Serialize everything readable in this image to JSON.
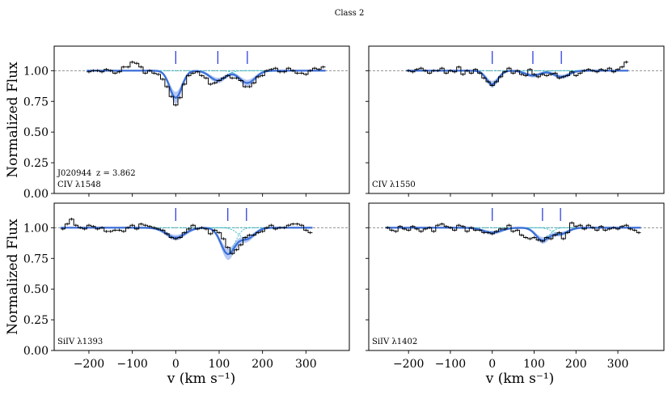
{
  "figure": {
    "suptitle": "Class 2",
    "xlabel": "v (km s⁻¹)",
    "ylabel": "Normalized Flux",
    "target_label": "J020944",
    "redshift_label": "z = 3.862",
    "colors": {
      "data": "#000000",
      "total_fit": "#3a6fd8",
      "fit_band": "#a9bff2",
      "components": "#2bb8c4",
      "markers": "#2030e0",
      "continuum": "#808080"
    }
  },
  "chart_data": [
    {
      "type": "line",
      "panel": "top-left",
      "ion_label": "CIV λ1548",
      "xlim": [
        -280,
        400
      ],
      "ylim": [
        0,
        1.2
      ],
      "xticks": [
        -200,
        -100,
        0,
        100,
        200,
        300
      ],
      "yticks": [
        0.0,
        0.25,
        0.5,
        0.75,
        1.0
      ],
      "yticklabels": [
        "0.00",
        "0.25",
        "0.50",
        "0.75",
        "1.00"
      ],
      "show_xticklabels": false,
      "show_yticklabels": true,
      "continuum": 1.0,
      "component_velocities": [
        0,
        97,
        165
      ],
      "components": [
        {
          "v": 0,
          "depth": 0.22,
          "sigma": 14
        },
        {
          "v": 97,
          "depth": 0.08,
          "sigma": 18
        },
        {
          "v": 165,
          "depth": 0.1,
          "sigma": 18
        }
      ],
      "x": [
        -200,
        -190,
        -180,
        -170,
        -160,
        -150,
        -140,
        -130,
        -120,
        -110,
        -100,
        -90,
        -80,
        -70,
        -60,
        -50,
        -40,
        -30,
        -20,
        -10,
        0,
        10,
        20,
        30,
        40,
        50,
        60,
        70,
        80,
        90,
        100,
        110,
        120,
        130,
        140,
        150,
        160,
        170,
        180,
        190,
        200,
        210,
        220,
        230,
        240,
        250,
        260,
        270,
        280,
        290,
        300,
        310,
        320,
        330,
        340
      ],
      "flux": [
        0.99,
        1.0,
        1.0,
        0.99,
        1.01,
        1.0,
        0.98,
        0.99,
        1.03,
        1.03,
        1.07,
        1.06,
        1.03,
        0.98,
        1.0,
        0.98,
        0.97,
        0.93,
        0.87,
        0.79,
        0.72,
        0.78,
        0.89,
        0.96,
        0.98,
        0.99,
        0.96,
        0.94,
        0.89,
        0.9,
        0.92,
        0.94,
        0.96,
        0.94,
        0.94,
        0.92,
        0.87,
        0.87,
        0.9,
        0.95,
        0.96,
        1.0,
        1.01,
        1.02,
        0.99,
        0.99,
        1.02,
        1.0,
        0.98,
        0.98,
        0.97,
        1.0,
        1.02,
        1.01,
        1.03
      ]
    },
    {
      "type": "line",
      "panel": "top-right",
      "ion_label": "CIV λ1550",
      "xlim": [
        -295,
        410
      ],
      "ylim": [
        0,
        1.2
      ],
      "xticks": [
        -200,
        -100,
        0,
        100,
        200,
        300
      ],
      "yticks": [
        0.0,
        0.25,
        0.5,
        0.75,
        1.0
      ],
      "show_xticklabels": false,
      "show_yticklabels": false,
      "continuum": 1.0,
      "component_velocities": [
        0,
        97,
        165
      ],
      "components": [
        {
          "v": 0,
          "depth": 0.11,
          "sigma": 14
        },
        {
          "v": 97,
          "depth": 0.04,
          "sigma": 18
        },
        {
          "v": 165,
          "depth": 0.05,
          "sigma": 18
        }
      ],
      "x": [
        -200,
        -190,
        -180,
        -170,
        -160,
        -150,
        -140,
        -130,
        -120,
        -110,
        -100,
        -90,
        -80,
        -70,
        -60,
        -50,
        -40,
        -30,
        -20,
        -10,
        0,
        10,
        20,
        30,
        40,
        50,
        60,
        70,
        80,
        90,
        100,
        110,
        120,
        130,
        140,
        150,
        160,
        170,
        180,
        190,
        200,
        210,
        220,
        230,
        240,
        250,
        260,
        270,
        280,
        290,
        300,
        310,
        320
      ],
      "flux": [
        1.0,
        0.99,
        1.01,
        1.02,
        1.0,
        0.98,
        1.0,
        1.0,
        1.02,
        0.98,
        1.0,
        0.99,
        1.03,
        0.97,
        1.0,
        0.98,
        1.01,
        0.98,
        0.94,
        0.91,
        0.88,
        0.91,
        0.95,
        0.99,
        1.02,
        0.98,
        1.0,
        0.97,
        0.96,
        1.01,
        0.97,
        0.95,
        0.97,
        0.96,
        0.97,
        0.98,
        0.94,
        0.95,
        0.96,
        0.99,
        0.96,
        0.98,
        1.0,
        1.01,
        1.0,
        0.99,
        1.01,
        1.0,
        1.02,
        0.99,
        1.01,
        1.03,
        1.07
      ]
    },
    {
      "type": "line",
      "panel": "bottom-left",
      "ion_label": "SiIV λ1393",
      "xlim": [
        -280,
        400
      ],
      "ylim": [
        0,
        1.2
      ],
      "xticks": [
        -200,
        -100,
        0,
        100,
        200,
        300
      ],
      "xticklabels": [
        "−200",
        "−100",
        "0",
        "100",
        "200",
        "300"
      ],
      "yticks": [
        0.0,
        0.25,
        0.5,
        0.75,
        1.0
      ],
      "yticklabels": [
        "0.00",
        "0.25",
        "0.50",
        "0.75",
        "1.00"
      ],
      "show_xticklabels": true,
      "show_yticklabels": true,
      "continuum": 1.0,
      "component_velocities": [
        0,
        120,
        163
      ],
      "components": [
        {
          "v": 0,
          "depth": 0.08,
          "sigma": 22
        },
        {
          "v": 120,
          "depth": 0.21,
          "sigma": 16
        },
        {
          "v": 163,
          "depth": 0.09,
          "sigma": 18
        }
      ],
      "x": [
        -260,
        -250,
        -240,
        -230,
        -220,
        -210,
        -200,
        -190,
        -180,
        -170,
        -160,
        -150,
        -140,
        -130,
        -120,
        -110,
        -100,
        -90,
        -80,
        -70,
        -60,
        -50,
        -40,
        -30,
        -20,
        -10,
        0,
        10,
        20,
        30,
        40,
        50,
        60,
        70,
        80,
        90,
        100,
        110,
        120,
        130,
        140,
        150,
        160,
        170,
        180,
        190,
        200,
        210,
        220,
        230,
        240,
        250,
        260,
        270,
        280,
        290,
        300,
        310
      ],
      "flux": [
        0.99,
        1.03,
        1.07,
        1.02,
        1.0,
        0.99,
        1.02,
        1.01,
        0.99,
        1.0,
        0.97,
        0.97,
        0.98,
        0.98,
        0.97,
        1.0,
        1.02,
        0.99,
        1.03,
        1.02,
        1.01,
        1.0,
        0.99,
        0.98,
        0.95,
        0.92,
        0.91,
        0.92,
        0.96,
        0.99,
        1.02,
        0.99,
        1.0,
        0.99,
        0.95,
        0.98,
        0.96,
        0.91,
        0.84,
        0.79,
        0.82,
        0.86,
        0.92,
        0.94,
        0.94,
        0.96,
        0.97,
        1.0,
        1.02,
        0.99,
        1.0,
        1.0,
        1.02,
        1.03,
        1.03,
        1.02,
        0.98,
        0.96
      ]
    },
    {
      "type": "line",
      "panel": "bottom-right",
      "ion_label": "SiIV λ1402",
      "xlim": [
        -295,
        410
      ],
      "ylim": [
        0,
        1.2
      ],
      "xticks": [
        -200,
        -100,
        0,
        100,
        200,
        300
      ],
      "xticklabels": [
        "−200",
        "−100",
        "0",
        "100",
        "200",
        "300"
      ],
      "yticks": [
        0.0,
        0.25,
        0.5,
        0.75,
        1.0
      ],
      "show_xticklabels": true,
      "show_yticklabels": false,
      "continuum": 1.0,
      "component_velocities": [
        0,
        120,
        163
      ],
      "components": [
        {
          "v": 0,
          "depth": 0.04,
          "sigma": 22
        },
        {
          "v": 120,
          "depth": 0.1,
          "sigma": 16
        },
        {
          "v": 163,
          "depth": 0.05,
          "sigma": 18
        }
      ],
      "x": [
        -250,
        -240,
        -230,
        -220,
        -210,
        -200,
        -190,
        -180,
        -170,
        -160,
        -150,
        -140,
        -130,
        -120,
        -110,
        -100,
        -90,
        -80,
        -70,
        -60,
        -50,
        -40,
        -30,
        -20,
        -10,
        0,
        10,
        20,
        30,
        40,
        50,
        60,
        70,
        80,
        90,
        100,
        110,
        120,
        130,
        140,
        150,
        160,
        170,
        180,
        190,
        200,
        210,
        220,
        230,
        240,
        250,
        260,
        270,
        280,
        290,
        300,
        310,
        320,
        330,
        340,
        350
      ],
      "flux": [
        1.0,
        0.98,
        0.97,
        1.01,
        0.99,
        0.98,
        1.01,
        0.99,
        0.97,
        0.99,
        1.0,
        0.97,
        1.02,
        1.03,
        1.01,
        1.0,
        0.98,
        1.02,
        1.01,
        0.97,
        1.0,
        0.98,
        0.98,
        0.96,
        0.96,
        0.95,
        0.97,
        0.99,
        0.99,
        1.02,
        0.97,
        0.98,
        0.94,
        0.92,
        0.91,
        0.92,
        0.9,
        0.89,
        0.92,
        0.91,
        0.94,
        0.96,
        0.91,
        0.96,
        1.04,
        1.01,
        1.02,
        0.99,
        1.02,
        1.0,
        0.98,
        1.01,
        0.98,
        0.99,
        1.0,
        0.99,
        1.01,
        1.02,
        0.99,
        0.98,
        0.96
      ]
    }
  ]
}
